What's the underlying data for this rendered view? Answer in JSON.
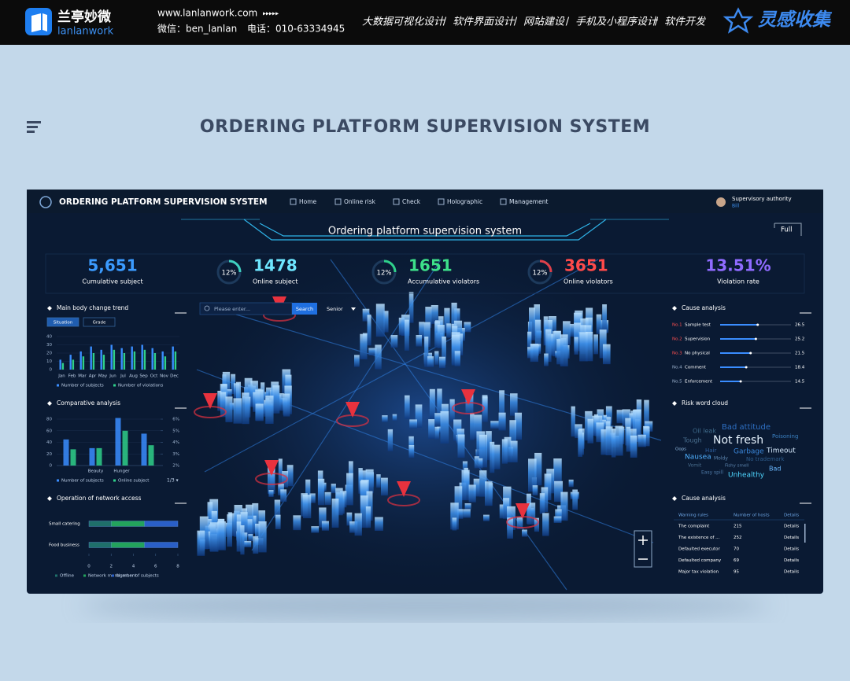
{
  "header": {
    "logo_cn": "兰亭妙微",
    "logo_en": "lanlanwork",
    "url": "www.lanlanwork.com",
    "arrows": "▸▸▸▸▸",
    "wechat": "微信：ben_lanlan",
    "phone": "电话：010-63334945",
    "nav": [
      "大数据可视化设计",
      "软件界面设计",
      "网站建设",
      "手机及小程序设计",
      "软件开发"
    ],
    "nav_separator": "/",
    "brand": "灵感收集"
  },
  "page_title": "ORDERING PLATFORM SUPERVISION SYSTEM",
  "dashboard": {
    "app_title": "ORDERING PLATFORM SUPERVISION SYSTEM",
    "nav": [
      "Home",
      "Online risk",
      "Check",
      "Holographic",
      "Management"
    ],
    "user": {
      "role": "Supervisory authority",
      "name": "Bill"
    },
    "banner": "Ordering platform supervision system",
    "full": "Full",
    "stats": [
      {
        "value": "5,651",
        "label": "Cumulative subject"
      },
      {
        "percent": "12%",
        "value": "1478",
        "label": "Online subject"
      },
      {
        "percent": "12%",
        "value": "1651",
        "label": "Accumulative violators"
      },
      {
        "percent": "12%",
        "value": "3651",
        "label": "Online violators"
      },
      {
        "value": "13.51%",
        "label": "Violation rate"
      }
    ],
    "trend": {
      "title": "Main body change trend",
      "tabs": [
        "Situation",
        "Grade"
      ],
      "categories": [
        "Jan",
        "Feb",
        "Mar",
        "Apr",
        "May",
        "Jun",
        "Jul",
        "Aug",
        "Sep",
        "Oct",
        "Nov",
        "Dec"
      ],
      "ylim": [
        0,
        40
      ],
      "yticks": [
        0,
        10,
        20,
        30,
        40
      ],
      "series": [
        {
          "name": "Number of subjects",
          "color": "#3a8dff",
          "values": [
            12,
            18,
            22,
            28,
            24,
            30,
            26,
            28,
            30,
            26,
            22,
            28
          ]
        },
        {
          "name": "Number of violations",
          "color": "#2fd08a",
          "values": [
            8,
            12,
            16,
            20,
            18,
            24,
            20,
            22,
            24,
            20,
            16,
            22
          ]
        }
      ]
    },
    "comparative": {
      "title": "Comparative analysis",
      "categories": [
        null,
        "Beauty",
        "Hunger",
        null
      ],
      "ylim": [
        0,
        80
      ],
      "yticks": [
        0,
        20,
        40,
        60,
        80
      ],
      "y2lim": [
        2,
        6
      ],
      "y2ticks": [
        {
          "value": 2,
          "label": "2%"
        },
        {
          "value": 3,
          "label": "3%"
        },
        {
          "value": 4,
          "label": "4%"
        },
        {
          "value": 5,
          "label": "5%"
        },
        {
          "value": 6,
          "label": "6%"
        }
      ],
      "series": [
        {
          "name": "Number of subjects",
          "color": "#3a8dff",
          "values": [
            45,
            30,
            82,
            55
          ]
        },
        {
          "name": "Online subject",
          "color": "#2fd08a",
          "values": [
            28,
            30,
            60,
            35
          ]
        }
      ],
      "pager": "1/3 ▾"
    },
    "network": {
      "title": "Operation of network access",
      "categories": [
        "Small catering",
        "Food business"
      ],
      "xlim": [
        0,
        8
      ],
      "xticks": [
        0,
        2,
        4,
        6,
        8
      ],
      "series": [
        {
          "name": "Offline",
          "color": "#1f6f6a",
          "values": [
            2,
            2
          ]
        },
        {
          "name": "Network management",
          "color": "#23a35c",
          "values": [
            3,
            3
          ]
        },
        {
          "name": "Number of subjects",
          "color": "#2a5fc7",
          "values": [
            3,
            3
          ]
        }
      ]
    },
    "search": {
      "placeholder": "Please enter...",
      "button": "Search",
      "select": "Senior"
    },
    "causes": {
      "title": "Cause analysis",
      "xlim": [
        0,
        50
      ],
      "items": [
        {
          "rank": "No.1",
          "name": "Sample test",
          "value": 26.5
        },
        {
          "rank": "No.2",
          "name": "Supervision",
          "value": 25.2
        },
        {
          "rank": "No.3",
          "name": "No physical",
          "value": 21.5
        },
        {
          "rank": "No.4",
          "name": "Comment",
          "value": 18.4
        },
        {
          "rank": "No.5",
          "name": "Enforcement",
          "value": 14.5
        }
      ]
    },
    "word_cloud": {
      "title": "Risk word cloud",
      "words": [
        "Bad attitude",
        "Oil leak",
        "Tough",
        "Not fresh",
        "Poisoning",
        "Oops",
        "Hair",
        "Garbage",
        "Timeout",
        "Nausea",
        "Moldy",
        "No trademark",
        "Vomit",
        "Fishy smell",
        "Bad",
        "Easy spill",
        "Unhealthy"
      ]
    },
    "cause_table": {
      "title": "Cause analysis",
      "headers": [
        "Warning rules",
        "Number of hosts",
        "Details"
      ],
      "rows": [
        [
          "The complaint",
          "215",
          "Details"
        ],
        [
          "The existence of ...",
          "252",
          "Details"
        ],
        [
          "Defaulted executor",
          "70",
          "Details"
        ],
        [
          "Defaulted company",
          "69",
          "Details"
        ],
        [
          "Major tax violation",
          "95",
          "Details"
        ]
      ]
    }
  }
}
